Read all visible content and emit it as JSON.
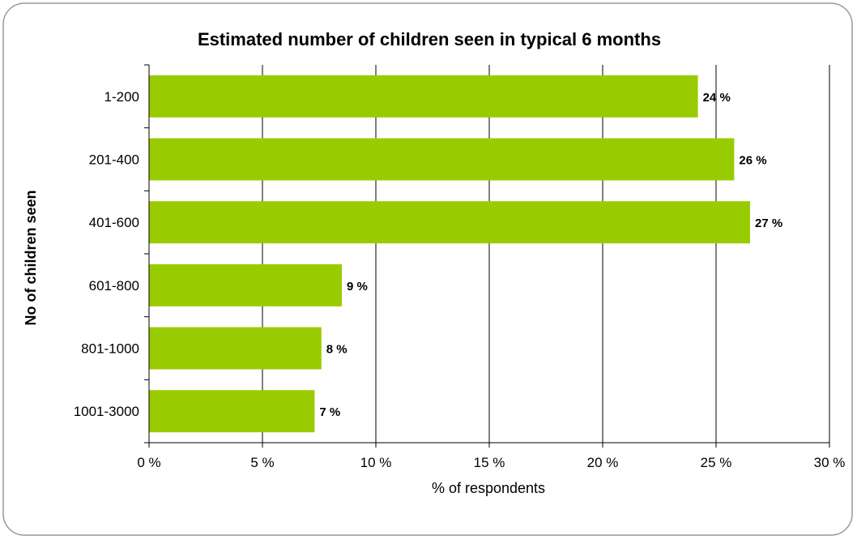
{
  "chart_data": {
    "type": "bar",
    "orientation": "horizontal",
    "title": "Estimated number of children seen in typical 6 months",
    "xlabel": "% of respondents",
    "ylabel": "No of children seen",
    "categories": [
      "1-200",
      "201-400",
      "401-600",
      "601-800",
      "801-1000",
      "1001-3000"
    ],
    "values": [
      24.2,
      25.8,
      26.5,
      8.5,
      7.6,
      7.3
    ],
    "data_labels": [
      "24 %",
      "26 %",
      "27 %",
      "9 %",
      "8 %",
      "7 %"
    ],
    "xlim": [
      0,
      30
    ],
    "x_ticks": [
      0,
      5,
      10,
      15,
      20,
      25,
      30
    ],
    "x_tick_labels": [
      "0 %",
      "5 %",
      "10 %",
      "15 %",
      "20 %",
      "25 %",
      "30 %"
    ],
    "grid": "vertical",
    "legend": "none",
    "colors": {
      "bar": "#99CC00",
      "grid": "#000000",
      "frame": "#999999"
    }
  }
}
